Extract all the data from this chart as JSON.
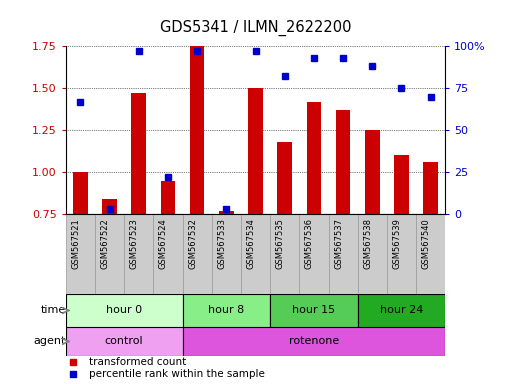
{
  "title": "GDS5341 / ILMN_2622200",
  "samples": [
    "GSM567521",
    "GSM567522",
    "GSM567523",
    "GSM567524",
    "GSM567532",
    "GSM567533",
    "GSM567534",
    "GSM567535",
    "GSM567536",
    "GSM567537",
    "GSM567538",
    "GSM567539",
    "GSM567540"
  ],
  "transformed_count": [
    1.0,
    0.84,
    1.47,
    0.95,
    1.88,
    0.77,
    1.5,
    1.18,
    1.42,
    1.37,
    1.25,
    1.1,
    1.06
  ],
  "percentile_rank": [
    67,
    3,
    97,
    22,
    97,
    3,
    97,
    82,
    93,
    93,
    88,
    75,
    70
  ],
  "ylim_left": [
    0.75,
    1.75
  ],
  "ylim_right": [
    0,
    100
  ],
  "yticks_left": [
    0.75,
    1.0,
    1.25,
    1.5,
    1.75
  ],
  "yticks_right": [
    0,
    25,
    50,
    75,
    100
  ],
  "bar_color": "#cc0000",
  "dot_color": "#0000cc",
  "bar_bottom": 0.75,
  "time_groups": [
    {
      "label": "hour 0",
      "start": 0,
      "end": 4,
      "color": "#ccffcc"
    },
    {
      "label": "hour 8",
      "start": 4,
      "end": 7,
      "color": "#88ee88"
    },
    {
      "label": "hour 15",
      "start": 7,
      "end": 10,
      "color": "#55cc55"
    },
    {
      "label": "hour 24",
      "start": 10,
      "end": 13,
      "color": "#22aa22"
    }
  ],
  "agent_groups": [
    {
      "label": "control",
      "start": 0,
      "end": 4,
      "color": "#f0a0f0"
    },
    {
      "label": "rotenone",
      "start": 4,
      "end": 13,
      "color": "#dd55dd"
    }
  ],
  "bg_color": "#ffffff",
  "tick_label_color_left": "#cc0000",
  "tick_label_color_right": "#0000cc",
  "sample_bg": "#cccccc",
  "sample_border": "#999999"
}
